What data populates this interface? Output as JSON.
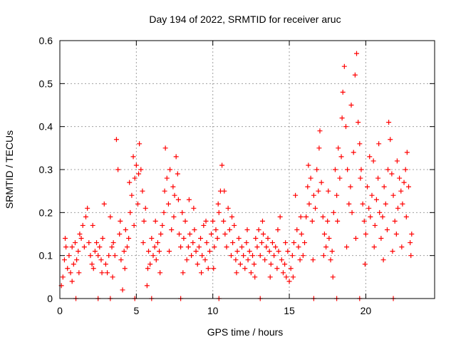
{
  "chart_data": {
    "type": "scatter",
    "title": "Day 194 of 2022, SRMTID for receiver aruc",
    "xlabel": "GPS time / hours",
    "ylabel": "SRMTID / TECUs",
    "xlim": [
      0,
      24.5
    ],
    "ylim": [
      0,
      0.6
    ],
    "x_ticks": [
      0,
      5,
      10,
      15,
      20
    ],
    "y_ticks": [
      0,
      0.1,
      0.2,
      0.3,
      0.4,
      0.5,
      0.6
    ],
    "x_tick_labels": [
      "0",
      "5",
      "10",
      "15",
      "20"
    ],
    "y_tick_labels": [
      "0",
      "0.1",
      "0.2",
      "0.3",
      "0.4",
      "0.5",
      "0.6"
    ],
    "grid": true,
    "marker": "+",
    "color": "#ff0000",
    "series": [
      {
        "name": "aruc",
        "points": [
          [
            0.1,
            0.03
          ],
          [
            0.2,
            0.05
          ],
          [
            0.3,
            0.09
          ],
          [
            0.4,
            0.12
          ],
          [
            0.5,
            0.07
          ],
          [
            0.6,
            0.1
          ],
          [
            0.7,
            0.06
          ],
          [
            0.8,
            0.12
          ],
          [
            0.9,
            0.08
          ],
          [
            1.0,
            0.13
          ],
          [
            1.1,
            0.09
          ],
          [
            1.2,
            0.11
          ],
          [
            1.3,
            0.15
          ],
          [
            1.4,
            0.14
          ],
          [
            1.5,
            0.17
          ],
          [
            1.6,
            0.12
          ],
          [
            1.7,
            0.19
          ],
          [
            1.8,
            0.21
          ],
          [
            1.9,
            0.13
          ],
          [
            2.0,
            0.1
          ],
          [
            2.1,
            0.08
          ],
          [
            2.2,
            0.07
          ],
          [
            2.3,
            0.11
          ],
          [
            2.4,
            0.13
          ],
          [
            2.5,
            0.1
          ],
          [
            2.6,
            0.12
          ],
          [
            2.7,
            0.09
          ],
          [
            2.8,
            0.14
          ],
          [
            2.9,
            0.22
          ],
          [
            3.0,
            0.08
          ],
          [
            3.1,
            0.06
          ],
          [
            3.2,
            0.1
          ],
          [
            3.3,
            0.19
          ],
          [
            3.4,
            0.12
          ],
          [
            3.5,
            0.13
          ],
          [
            3.6,
            0.1
          ],
          [
            3.7,
            0.37
          ],
          [
            3.8,
            0.3
          ],
          [
            3.9,
            0.15
          ],
          [
            4.0,
            0.09
          ],
          [
            4.1,
            0.02
          ],
          [
            4.2,
            0.11
          ],
          [
            4.3,
            0.16
          ],
          [
            4.4,
            0.12
          ],
          [
            4.5,
            0.14
          ],
          [
            4.6,
            0.2
          ],
          [
            4.7,
            0.24
          ],
          [
            4.8,
            0.33
          ],
          [
            4.9,
            0.28
          ],
          [
            5.0,
            0.31
          ],
          [
            5.1,
            0.22
          ],
          [
            5.2,
            0.36
          ],
          [
            5.3,
            0.3
          ],
          [
            5.4,
            0.25
          ],
          [
            5.5,
            0.18
          ],
          [
            5.6,
            0.21
          ],
          [
            5.7,
            0.03
          ],
          [
            5.8,
            0.11
          ],
          [
            5.9,
            0.08
          ],
          [
            6.0,
            0.14
          ],
          [
            6.1,
            0.1
          ],
          [
            6.2,
            0.12
          ],
          [
            6.3,
            0.09
          ],
          [
            6.4,
            0.13
          ],
          [
            6.5,
            0.11
          ],
          [
            6.6,
            0.15
          ],
          [
            6.7,
            0.17
          ],
          [
            6.8,
            0.2
          ],
          [
            6.9,
            0.35
          ],
          [
            7.0,
            0.28
          ],
          [
            7.1,
            0.22
          ],
          [
            7.2,
            0.3
          ],
          [
            7.3,
            0.16
          ],
          [
            7.4,
            0.26
          ],
          [
            7.5,
            0.24
          ],
          [
            7.6,
            0.33
          ],
          [
            7.7,
            0.29
          ],
          [
            7.8,
            0.15
          ],
          [
            7.9,
            0.12
          ],
          [
            8.0,
            0.2
          ],
          [
            8.1,
            0.14
          ],
          [
            8.2,
            0.18
          ],
          [
            8.3,
            0.09
          ],
          [
            8.4,
            0.12
          ],
          [
            8.5,
            0.15
          ],
          [
            8.6,
            0.1
          ],
          [
            8.7,
            0.13
          ],
          [
            8.8,
            0.16
          ],
          [
            8.9,
            0.11
          ],
          [
            9.0,
            0.08
          ],
          [
            9.1,
            0.12
          ],
          [
            9.2,
            0.14
          ],
          [
            9.3,
            0.1
          ],
          [
            9.4,
            0.17
          ],
          [
            9.5,
            0.09
          ],
          [
            9.6,
            0.13
          ],
          [
            9.7,
            0.07
          ],
          [
            9.8,
            0.11
          ],
          [
            9.9,
            0.15
          ],
          [
            10.0,
            0.18
          ],
          [
            10.1,
            0.12
          ],
          [
            10.2,
            0.16
          ],
          [
            10.3,
            0.14
          ],
          [
            10.4,
            0.2
          ],
          [
            10.5,
            0.25
          ],
          [
            10.6,
            0.31
          ],
          [
            10.7,
            0.18
          ],
          [
            10.8,
            0.15
          ],
          [
            10.9,
            0.12
          ],
          [
            11.0,
            0.21
          ],
          [
            11.1,
            0.16
          ],
          [
            11.2,
            0.1
          ],
          [
            11.3,
            0.13
          ],
          [
            11.4,
            0.17
          ],
          [
            11.5,
            0.09
          ],
          [
            11.6,
            0.11
          ],
          [
            11.7,
            0.14
          ],
          [
            11.8,
            0.08
          ],
          [
            11.9,
            0.12
          ],
          [
            12.0,
            0.1
          ],
          [
            12.1,
            0.07
          ],
          [
            12.2,
            0.13
          ],
          [
            12.3,
            0.09
          ],
          [
            12.4,
            0.11
          ],
          [
            12.5,
            0.06
          ],
          [
            12.6,
            0.1
          ],
          [
            12.7,
            0.08
          ],
          [
            12.8,
            0.14
          ],
          [
            12.9,
            0.12
          ],
          [
            13.0,
            0.16
          ],
          [
            13.1,
            0.1
          ],
          [
            13.2,
            0.13
          ],
          [
            13.3,
            0.15
          ],
          [
            13.4,
            0.09
          ],
          [
            13.5,
            0.12
          ],
          [
            13.6,
            0.14
          ],
          [
            13.7,
            0.11
          ],
          [
            13.8,
            0.08
          ],
          [
            13.9,
            0.13
          ],
          [
            14.0,
            0.1
          ],
          [
            14.1,
            0.12
          ],
          [
            14.2,
            0.07
          ],
          [
            14.3,
            0.11
          ],
          [
            14.4,
            0.19
          ],
          [
            14.5,
            0.09
          ],
          [
            14.6,
            0.06
          ],
          [
            14.7,
            0.08
          ],
          [
            14.8,
            0.05
          ],
          [
            14.9,
            0.11
          ],
          [
            15.0,
            0.04
          ],
          [
            15.1,
            0.07
          ],
          [
            15.2,
            0.1
          ],
          [
            15.3,
            0.13
          ],
          [
            15.4,
            0.24
          ],
          [
            15.5,
            0.16
          ],
          [
            15.6,
            0.12
          ],
          [
            15.7,
            0.09
          ],
          [
            15.8,
            0.15
          ],
          [
            15.9,
            0.1
          ],
          [
            16.0,
            0.13
          ],
          [
            16.1,
            0.19
          ],
          [
            16.2,
            0.26
          ],
          [
            16.3,
            0.22
          ],
          [
            16.4,
            0.28
          ],
          [
            16.5,
            0.18
          ],
          [
            16.6,
            0.24
          ],
          [
            16.7,
            0.21
          ],
          [
            16.8,
            0.3
          ],
          [
            16.9,
            0.25
          ],
          [
            17.0,
            0.39
          ],
          [
            17.1,
            0.27
          ],
          [
            17.2,
            0.19
          ],
          [
            17.3,
            0.15
          ],
          [
            17.4,
            0.12
          ],
          [
            17.5,
            0.18
          ],
          [
            17.6,
            0.14
          ],
          [
            17.7,
            0.09
          ],
          [
            17.8,
            0.11
          ],
          [
            17.9,
            0.2
          ],
          [
            18.0,
            0.3
          ],
          [
            18.1,
            0.24
          ],
          [
            18.2,
            0.35
          ],
          [
            18.3,
            0.28
          ],
          [
            18.4,
            0.33
          ],
          [
            18.5,
            0.48
          ],
          [
            18.6,
            0.54
          ],
          [
            18.7,
            0.4
          ],
          [
            18.8,
            0.3
          ],
          [
            18.9,
            0.22
          ],
          [
            19.0,
            0.26
          ],
          [
            19.1,
            0.2
          ],
          [
            19.2,
            0.34
          ],
          [
            19.3,
            0.52
          ],
          [
            19.4,
            0.57
          ],
          [
            19.5,
            0.41
          ],
          [
            19.6,
            0.36
          ],
          [
            19.7,
            0.3
          ],
          [
            19.8,
            0.22
          ],
          [
            19.9,
            0.18
          ],
          [
            20.0,
            0.15
          ],
          [
            20.1,
            0.26
          ],
          [
            20.2,
            0.21
          ],
          [
            20.3,
            0.19
          ],
          [
            20.4,
            0.24
          ],
          [
            20.5,
            0.32
          ],
          [
            20.6,
            0.17
          ],
          [
            20.7,
            0.23
          ],
          [
            20.8,
            0.28
          ],
          [
            20.9,
            0.2
          ],
          [
            21.0,
            0.14
          ],
          [
            21.1,
            0.19
          ],
          [
            21.2,
            0.26
          ],
          [
            21.3,
            0.22
          ],
          [
            21.4,
            0.16
          ],
          [
            21.5,
            0.41
          ],
          [
            21.6,
            0.37
          ],
          [
            21.7,
            0.29
          ],
          [
            21.8,
            0.24
          ],
          [
            21.9,
            0.18
          ],
          [
            22.0,
            0.15
          ],
          [
            22.1,
            0.21
          ],
          [
            22.2,
            0.28
          ],
          [
            22.3,
            0.25
          ],
          [
            22.4,
            0.22
          ],
          [
            22.5,
            0.27
          ],
          [
            22.6,
            0.3
          ],
          [
            22.7,
            0.34
          ],
          [
            22.8,
            0.26
          ],
          [
            22.9,
            0.13
          ],
          [
            23.0,
            0.15
          ],
          [
            0.35,
            0.14
          ],
          [
            0.8,
            0.04
          ],
          [
            1.25,
            0.06
          ],
          [
            2.15,
            0.17
          ],
          [
            2.75,
            0.06
          ],
          [
            3.45,
            0.05
          ],
          [
            3.95,
            0.18
          ],
          [
            4.25,
            0.07
          ],
          [
            4.55,
            0.27
          ],
          [
            4.85,
            0.17
          ],
          [
            5.15,
            0.29
          ],
          [
            5.45,
            0.13
          ],
          [
            5.75,
            0.07
          ],
          [
            6.25,
            0.18
          ],
          [
            6.55,
            0.06
          ],
          [
            6.85,
            0.25
          ],
          [
            7.15,
            0.11
          ],
          [
            7.45,
            0.19
          ],
          [
            7.75,
            0.23
          ],
          [
            8.05,
            0.06
          ],
          [
            8.45,
            0.23
          ],
          [
            8.75,
            0.21
          ],
          [
            9.25,
            0.06
          ],
          [
            9.55,
            0.18
          ],
          [
            10.05,
            0.07
          ],
          [
            10.35,
            0.22
          ],
          [
            10.75,
            0.25
          ],
          [
            11.25,
            0.19
          ],
          [
            11.55,
            0.06
          ],
          [
            12.25,
            0.16
          ],
          [
            12.75,
            0.05
          ],
          [
            13.25,
            0.18
          ],
          [
            13.75,
            0.05
          ],
          [
            14.25,
            0.16
          ],
          [
            14.75,
            0.13
          ],
          [
            15.25,
            0.05
          ],
          [
            15.75,
            0.19
          ],
          [
            16.25,
            0.31
          ],
          [
            16.55,
            0.09
          ],
          [
            16.95,
            0.35
          ],
          [
            17.25,
            0.1
          ],
          [
            17.55,
            0.25
          ],
          [
            17.85,
            0.05
          ],
          [
            18.15,
            0.18
          ],
          [
            18.45,
            0.42
          ],
          [
            18.75,
            0.12
          ],
          [
            19.05,
            0.45
          ],
          [
            19.35,
            0.14
          ],
          [
            19.65,
            0.28
          ],
          [
            19.95,
            0.08
          ],
          [
            20.25,
            0.33
          ],
          [
            20.55,
            0.12
          ],
          [
            20.85,
            0.36
          ],
          [
            21.15,
            0.09
          ],
          [
            21.45,
            0.3
          ],
          [
            21.75,
            0.11
          ],
          [
            22.05,
            0.32
          ],
          [
            22.35,
            0.12
          ],
          [
            22.65,
            0.19
          ],
          [
            22.95,
            0.1
          ],
          [
            1.05,
            0
          ],
          [
            2.5,
            0
          ],
          [
            3.3,
            0
          ],
          [
            4.9,
            0
          ],
          [
            6.0,
            0
          ],
          [
            7.9,
            0
          ],
          [
            10.4,
            0
          ],
          [
            13.1,
            0
          ],
          [
            16.6,
            0
          ],
          [
            18.1,
            0
          ],
          [
            19.6,
            0
          ],
          [
            21.8,
            0
          ]
        ]
      }
    ]
  }
}
